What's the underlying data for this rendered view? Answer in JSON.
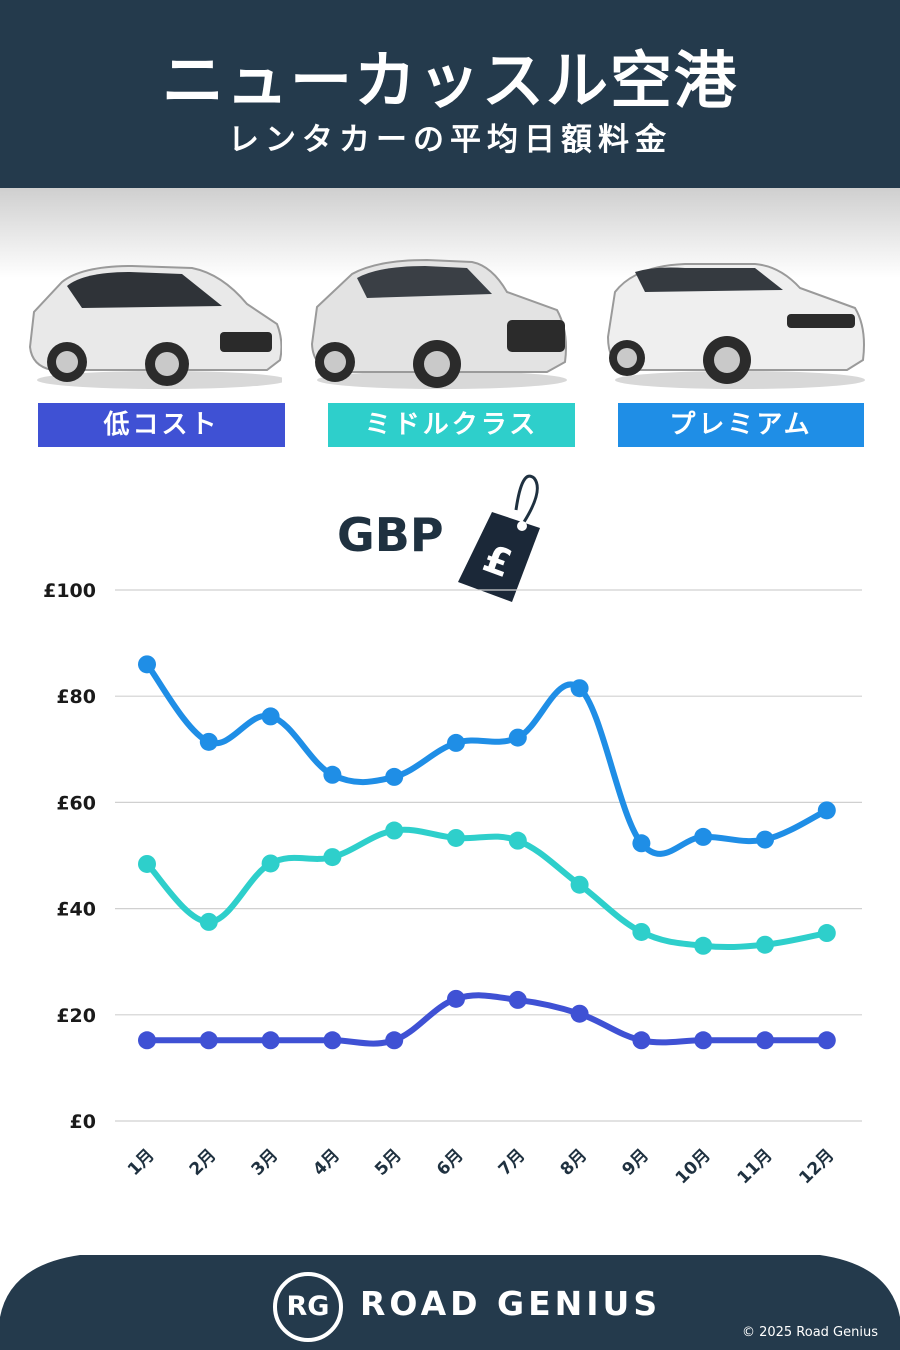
{
  "header": {
    "title": "ニューカッスル空港",
    "subtitle": "レンタカーの平均日額料金"
  },
  "categories_labels": {
    "low": "低コスト",
    "mid": "ミドルクラス",
    "premium": "プレミアム"
  },
  "currency": {
    "label": "GBP",
    "symbol": "£"
  },
  "colors": {
    "header_bg": "#243a4c",
    "low": "#3f51d4",
    "mid": "#2ecfcb",
    "premium": "#1f8ee6"
  },
  "chart_data": {
    "type": "line",
    "categories": [
      "1月",
      "2月",
      "3月",
      "4月",
      "5月",
      "6月",
      "7月",
      "8月",
      "9月",
      "10月",
      "11月",
      "12月"
    ],
    "series": [
      {
        "name": "低コスト",
        "color": "#3f51d4",
        "values": [
          15.2,
          15.2,
          15.2,
          15.2,
          15.2,
          23,
          22.8,
          20.2,
          15.2,
          15.2,
          15.2,
          15.2
        ]
      },
      {
        "name": "ミドルクラス",
        "color": "#2ecfcb",
        "values": [
          48.4,
          37.5,
          48.5,
          49.7,
          54.7,
          53.3,
          52.8,
          44.5,
          35.6,
          33,
          33.2,
          35.4
        ]
      },
      {
        "name": "プレミアム",
        "color": "#1f8ee6",
        "values": [
          86,
          71.4,
          76.2,
          65.2,
          64.8,
          71.2,
          72.2,
          81.5,
          52.3,
          53.5,
          53,
          58.5
        ]
      }
    ],
    "y_ticks": [
      "£0",
      "£20",
      "£40",
      "£60",
      "£80",
      "£100"
    ],
    "ylim": [
      0,
      100
    ],
    "grid": true
  },
  "footer": {
    "logo": "RG",
    "brand": "ROAD GENIUS",
    "copyright": "© 2025 Road Genius"
  }
}
